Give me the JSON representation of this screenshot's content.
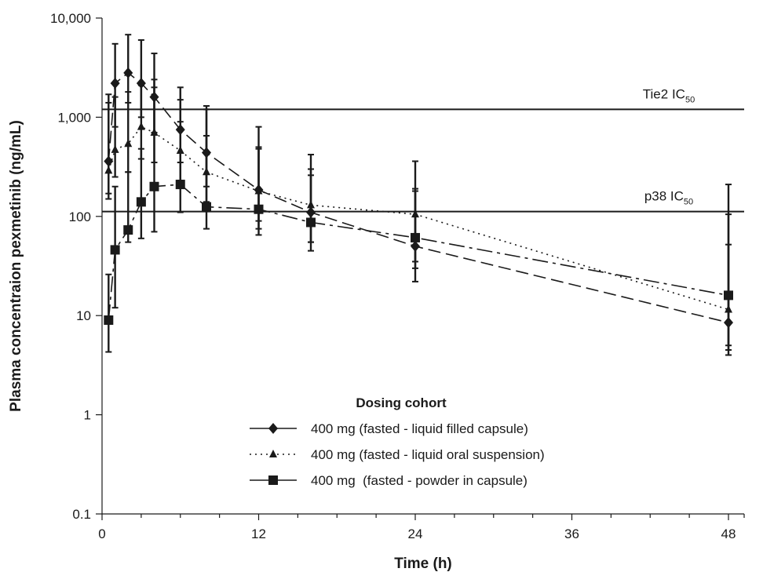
{
  "chart_data": {
    "type": "line",
    "xlabel": "Time (h)",
    "ylabel": "Plasma concentraion pexmetinib (ng/mL)",
    "x_ticks": [
      0,
      12,
      24,
      36,
      48
    ],
    "x_tick_labels": [
      "0",
      "12",
      "24",
      "36",
      "48"
    ],
    "xlim": [
      0,
      48
    ],
    "y_scale": "log",
    "ylim": [
      0.1,
      10000
    ],
    "y_ticks": [
      0.1,
      1,
      10,
      100,
      1000,
      10000
    ],
    "y_tick_labels": [
      "0.1",
      "1",
      "10",
      "100",
      "1,000",
      "10,000"
    ],
    "reference_lines": [
      {
        "label": "Tie2 IC",
        "subscript": "50",
        "value": 1200
      },
      {
        "label": "p38 IC",
        "subscript": "50",
        "value": 112
      }
    ],
    "legend": {
      "title": "Dosing cohort",
      "position": "lower-center"
    },
    "series": [
      {
        "name": "400 mg (fasted - liquid filled capsule)",
        "marker": "diamond",
        "line": "dashed",
        "x": [
          0.5,
          1,
          2,
          3,
          4,
          6,
          8,
          12,
          16,
          24,
          48
        ],
        "values": [
          360,
          2200,
          2800,
          2200,
          1600,
          750,
          440,
          185,
          110,
          50,
          8.5
        ],
        "err_low": [
          170,
          800,
          1400,
          1000,
          700,
          350,
          200,
          90,
          55,
          22,
          4
        ],
        "err_high": [
          1700,
          5500,
          6800,
          6000,
          4400,
          2000,
          1300,
          800,
          420,
          360,
          52
        ]
      },
      {
        "name": "400 mg (fasted - liquid oral suspension)",
        "marker": "triangle",
        "line": "dotted",
        "x": [
          0.5,
          1,
          2,
          3,
          4,
          6,
          8,
          12,
          16,
          24,
          48
        ],
        "values": [
          290,
          470,
          540,
          800,
          700,
          460,
          280,
          180,
          130,
          105,
          11.5
        ],
        "err_low": [
          150,
          250,
          280,
          380,
          350,
          230,
          140,
          75,
          55,
          35,
          5
        ],
        "err_high": [
          1400,
          1600,
          1800,
          2100,
          2000,
          1500,
          1200,
          480,
          300,
          190,
          105
        ]
      },
      {
        "name": "400 mg  (fasted - powder in capsule)",
        "marker": "square",
        "line": "dashdot",
        "x": [
          0.5,
          1,
          2,
          3,
          4,
          6,
          8,
          12,
          16,
          24,
          48
        ],
        "values": [
          9,
          46,
          73,
          140,
          200,
          210,
          125,
          118,
          87,
          61,
          16
        ],
        "err_low": [
          4.3,
          12,
          55,
          60,
          70,
          110,
          75,
          65,
          45,
          30,
          4.5
        ],
        "err_high": [
          26,
          200,
          280,
          480,
          2400,
          900,
          650,
          500,
          260,
          180,
          210
        ]
      }
    ]
  }
}
